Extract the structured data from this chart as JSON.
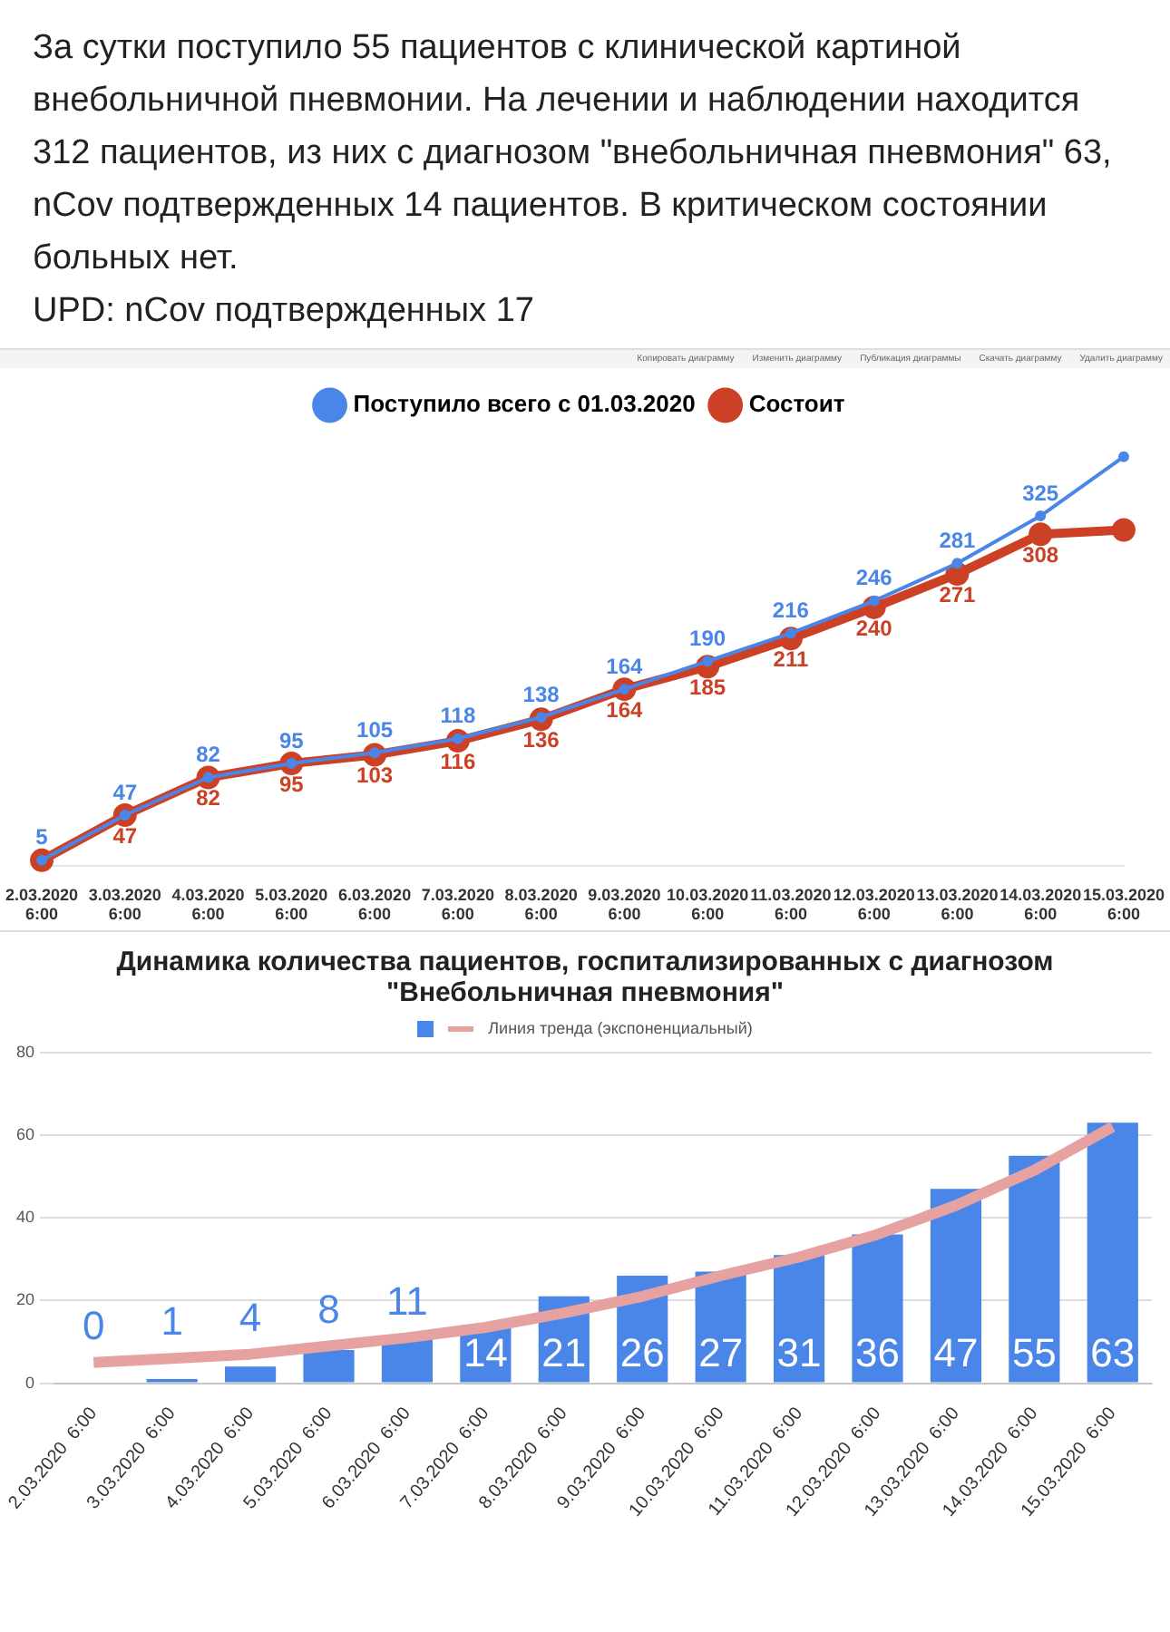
{
  "chart_data": [
    {
      "type": "line",
      "title": "За сутки поступило 55 пациентов с клинической картиной внебольничной пневмонии. На лечении и наблюдении находится 312 пациентов, из них с диагнозом \"внебольничная пневмония\" 63, nCov подтвержденных 14 пациентов. В критическом состоянии больных нет.\nUPD: nCov подтвержденных 17",
      "annotations": [
        "Копировать диаграмму",
        "Изменить диаграмму",
        "Публикация диаграммы",
        "Скачать диаграмму",
        "Удалить диаграмму"
      ],
      "categories": [
        "2.03.2020 6:00",
        "3.03.2020 6:00",
        "4.03.2020 6:00",
        "5.03.2020 6:00",
        "6.03.2020 6:00",
        "7.03.2020 6:00",
        "8.03.2020 6:00",
        "9.03.2020 6:00",
        "10.03.2020 6:00",
        "11.03.2020 6:00",
        "12.03.2020 6:00",
        "13.03.2020 6:00",
        "14.03.2020 6:00",
        "15.03.2020 6:00"
      ],
      "series": [
        {
          "name": "Поступило всего с 01.03.2020",
          "color": "#4a86e8",
          "values": [
            5,
            47,
            82,
            95,
            105,
            118,
            138,
            164,
            190,
            216,
            246,
            281,
            325,
            380
          ],
          "value_labels": [
            "5",
            "47",
            "82",
            "95",
            "105",
            "118",
            "138",
            "164",
            "190",
            "216",
            "246",
            "281",
            "325",
            null
          ]
        },
        {
          "name": "Состоит",
          "color": "#cc4125",
          "values": [
            5,
            47,
            82,
            95,
            103,
            116,
            136,
            164,
            185,
            211,
            240,
            271,
            308,
            312
          ],
          "value_labels": [
            null,
            "47",
            "82",
            "95",
            "103",
            "116",
            "136",
            "164",
            "185",
            "211",
            "240",
            "271",
            "308",
            null
          ]
        }
      ],
      "legend": "top",
      "marker": "circle"
    },
    {
      "type": "bar",
      "title": "Динамика количества пациентов, госпитализированных с диагнозом\n\"Внебольничная пневмония\"",
      "categories": [
        "2.03.2020  6:00",
        "3.03.2020  6:00",
        "4.03.2020  6:00",
        "5.03.2020  6:00",
        "6.03.2020  6:00",
        "7.03.2020  6:00",
        "8.03.2020  6:00",
        "9.03.2020  6:00",
        "10.03.2020  6:00",
        "11.03.2020  6:00",
        "12.03.2020  6:00",
        "13.03.2020  6:00",
        "14.03.2020  6:00",
        "15.03.2020  6:00"
      ],
      "series": [
        {
          "color": "#4a86e8",
          "values": [
            0,
            1,
            4,
            8,
            11,
            14,
            21,
            26,
            27,
            31,
            36,
            47,
            55,
            63
          ],
          "value_labels": [
            "0",
            "1",
            "4",
            "8",
            "11",
            "14",
            "21",
            "26",
            "27",
            "31",
            "36",
            "47",
            "55",
            "63"
          ]
        },
        {
          "type": "line",
          "name": "Линия тренда (экспоненциальный)",
          "color": "#e6a1a1",
          "x": [
            "2.03.2020  6:00",
            "3.03.2020  6:00",
            "4.03.2020  6:00",
            "5.03.2020  6:00",
            "6.03.2020  6:00",
            "7.03.2020  6:00",
            "8.03.2020  6:00",
            "9.03.2020  6:00",
            "10.03.2020  6:00",
            "11.03.2020  6:00",
            "12.03.2020  6:00",
            "13.03.2020  6:00",
            "14.03.2020  6:00",
            "15.03.2020  6:00"
          ],
          "values": [
            5,
            6,
            7,
            9,
            11,
            13.5,
            17,
            21,
            26,
            30.5,
            36,
            43,
            51.5,
            62
          ]
        }
      ],
      "ylim": [
        0,
        80
      ],
      "yticks": [
        0,
        20,
        40,
        60,
        80
      ],
      "grid": "y",
      "legend": "top"
    }
  ]
}
